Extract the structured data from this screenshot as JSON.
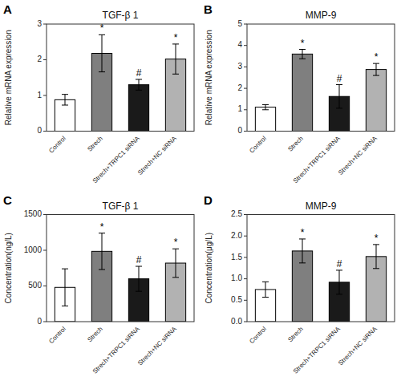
{
  "chart_data": [
    {
      "type": "bar",
      "panel_label": "A",
      "title": "TGF-β 1",
      "ylabel": "Relative mRNA expression",
      "categories": [
        "Control",
        "Strech",
        "Strech+TRPC1 siRNA",
        "Strech+NC siRNA"
      ],
      "values": [
        0.88,
        2.18,
        1.3,
        2.02
      ],
      "errors": [
        0.15,
        0.52,
        0.15,
        0.42
      ],
      "colors": [
        "white",
        "#7f7f7f",
        "#1a1a1a",
        "#b2b2b2"
      ],
      "ylim": [
        0,
        3
      ],
      "yticks": [
        0,
        1,
        2,
        3
      ],
      "annotations": [
        {
          "category": "Strech",
          "text": "*"
        },
        {
          "category": "Strech+TRPC1 siRNA",
          "text": "#"
        },
        {
          "category": "Strech+NC siRNA",
          "text": "*"
        }
      ]
    },
    {
      "type": "bar",
      "panel_label": "B",
      "title": "MMP-9",
      "ylabel": "Relative mRNA expression",
      "categories": [
        "Control",
        "Strech",
        "Strech+TRPC1 siRNA",
        "Strech+NC siRNA"
      ],
      "values": [
        1.12,
        3.6,
        1.62,
        2.88
      ],
      "errors": [
        0.12,
        0.22,
        0.55,
        0.28
      ],
      "colors": [
        "white",
        "#7f7f7f",
        "#1a1a1a",
        "#b2b2b2"
      ],
      "ylim": [
        0,
        5
      ],
      "yticks": [
        0,
        1,
        2,
        3,
        4,
        5
      ],
      "annotations": [
        {
          "category": "Strech",
          "text": "*"
        },
        {
          "category": "Strech+TRPC1 siRNA",
          "text": "#"
        },
        {
          "category": "Strech+NC siRNA",
          "text": "*"
        }
      ]
    },
    {
      "type": "bar",
      "panel_label": "C",
      "title": "TGF-β 1",
      "ylabel": "Concentration(ng/L)",
      "categories": [
        "Control",
        "Strech",
        "Strech+TRPC1 siRNA",
        "Strech+NC siRNA"
      ],
      "values": [
        480,
        985,
        600,
        820
      ],
      "errors": [
        260,
        255,
        175,
        200
      ],
      "colors": [
        "white",
        "#7f7f7f",
        "#1a1a1a",
        "#b2b2b2"
      ],
      "ylim": [
        0,
        1500
      ],
      "yticks": [
        0,
        500,
        1000,
        1500
      ],
      "annotations": [
        {
          "category": "Strech",
          "text": "*"
        },
        {
          "category": "Strech+TRPC1 siRNA",
          "text": "#"
        },
        {
          "category": "Strech+NC siRNA",
          "text": "*"
        }
      ]
    },
    {
      "type": "bar",
      "panel_label": "D",
      "title": "MMP-9",
      "ylabel": "Concentration(μg/L)",
      "categories": [
        "Control",
        "Strech",
        "Strech+TRPC1 siRNA",
        "Strech+NC siRNA"
      ],
      "values": [
        0.75,
        1.65,
        0.92,
        1.52
      ],
      "errors": [
        0.18,
        0.28,
        0.28,
        0.28
      ],
      "colors": [
        "white",
        "#7f7f7f",
        "#1a1a1a",
        "#b2b2b2"
      ],
      "ylim": [
        0,
        2.5
      ],
      "yticks": [
        {
          "value": 0,
          "label": "0.0"
        },
        0.5,
        {
          "value": 1,
          "label": "1.0"
        },
        1.5,
        {
          "value": 2,
          "label": "2.0"
        },
        2.5
      ],
      "annotations": [
        {
          "category": "Strech",
          "text": "*"
        },
        {
          "category": "Strech+TRPC1 siRNA",
          "text": "#"
        },
        {
          "category": "Strech+NC siRNA",
          "text": "*"
        }
      ]
    }
  ]
}
